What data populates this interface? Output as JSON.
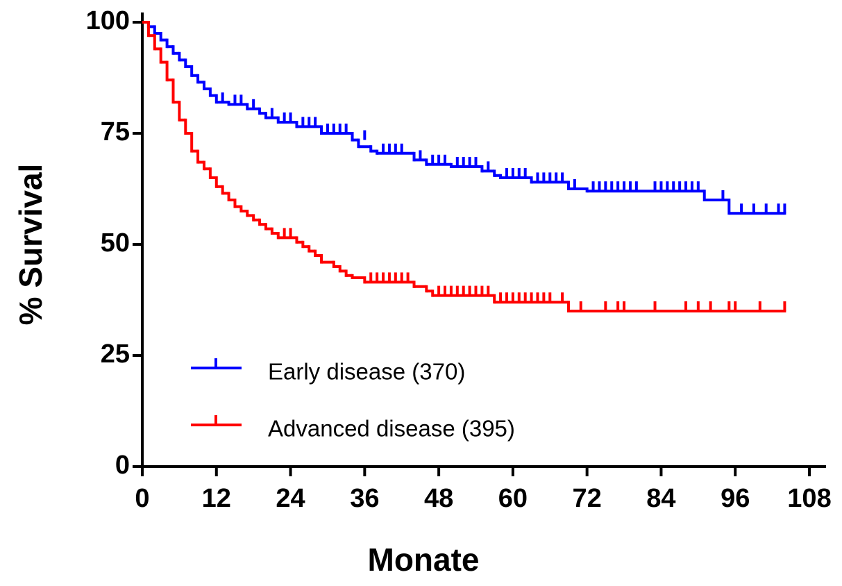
{
  "chart_data": {
    "type": "step",
    "xlabel": "Monate",
    "ylabel": "% Survival",
    "xlim": [
      0,
      108
    ],
    "ylim": [
      0,
      100
    ],
    "xticks": [
      0,
      12,
      24,
      36,
      48,
      60,
      72,
      84,
      96,
      108
    ],
    "yticks": [
      0,
      25,
      50,
      75,
      100
    ],
    "legend": "lower-left",
    "series": [
      {
        "name": "Early disease (370)",
        "color": "#0000ff",
        "x": [
          0,
          1,
          2,
          3,
          4,
          5,
          6,
          7,
          8,
          9,
          10,
          11,
          12,
          14,
          17,
          19,
          20,
          22,
          25,
          29,
          34,
          35,
          37,
          38,
          44,
          46,
          50,
          55,
          57,
          58,
          63,
          69,
          72,
          91,
          95,
          104
        ],
        "values": [
          100,
          99,
          97.5,
          96,
          94.5,
          93,
          91.5,
          90,
          88,
          86.5,
          85,
          83.5,
          82,
          81.5,
          80.5,
          79.5,
          78.5,
          77.5,
          76.5,
          75,
          73.5,
          72,
          71,
          70.5,
          69,
          68,
          67.5,
          66.5,
          65.5,
          65,
          64,
          62.5,
          62,
          60,
          57,
          57
        ],
        "censored_x": [
          13,
          15,
          16,
          18,
          21,
          23,
          24,
          26,
          27,
          28,
          30,
          31,
          32,
          33,
          36,
          39,
          40,
          41,
          42,
          45,
          47,
          48,
          49,
          51,
          52,
          53,
          54,
          56,
          59,
          60,
          61,
          62,
          64,
          65,
          66,
          67,
          68,
          70,
          73,
          74,
          75,
          76,
          77,
          78,
          79,
          80,
          83,
          84,
          85,
          86,
          87,
          88,
          89,
          90,
          94,
          97,
          99,
          101,
          103,
          104
        ],
        "censored_values": [
          82,
          81.5,
          81.5,
          80.5,
          78.5,
          77.5,
          77.5,
          76.5,
          76.5,
          76.5,
          75,
          75,
          75,
          75,
          73.5,
          70.5,
          70.5,
          70.5,
          70.5,
          69,
          68,
          68,
          68,
          67.5,
          67.5,
          67.5,
          67.5,
          66.5,
          65,
          65,
          65,
          65,
          64,
          64,
          64,
          64,
          64,
          62.5,
          62,
          62,
          62,
          62,
          62,
          62,
          62,
          62,
          62,
          62,
          62,
          62,
          62,
          62,
          62,
          62,
          60,
          57,
          57,
          57,
          57,
          57
        ]
      },
      {
        "name": "Advanced disease (395)",
        "color": "#ff0000",
        "x": [
          0,
          1,
          2,
          3,
          4,
          5,
          6,
          7,
          8,
          9,
          10,
          11,
          12,
          13,
          14,
          15,
          16,
          17,
          18,
          19,
          20,
          21,
          22,
          25,
          26,
          27,
          28,
          29,
          31,
          32,
          33,
          34,
          36,
          44,
          46,
          47,
          57,
          69,
          104
        ],
        "values": [
          100,
          97,
          94,
          91,
          87,
          82,
          78,
          75,
          71,
          68.5,
          67,
          65,
          63,
          61.5,
          60,
          58.5,
          57.5,
          56.5,
          55.5,
          54.5,
          53.5,
          52.5,
          51.5,
          50.5,
          49.5,
          48.5,
          47.5,
          46,
          45,
          44,
          43,
          42.5,
          41.5,
          40.5,
          39.5,
          38.5,
          37,
          35,
          35
        ],
        "censored_x": [
          23,
          24,
          37,
          38,
          39,
          40,
          41,
          42,
          43,
          48,
          49,
          50,
          51,
          52,
          53,
          54,
          55,
          56,
          58,
          59,
          60,
          61,
          62,
          63,
          64,
          65,
          66,
          68,
          71,
          75,
          77,
          78,
          83,
          88,
          90,
          92,
          95,
          96,
          100,
          104
        ],
        "censored_values": [
          51.5,
          51.5,
          41.5,
          41.5,
          41.5,
          41.5,
          41.5,
          41.5,
          41.5,
          38.5,
          38.5,
          38.5,
          38.5,
          38.5,
          38.5,
          38.5,
          38.5,
          38.5,
          37,
          37,
          37,
          37,
          37,
          37,
          37,
          37,
          37,
          37,
          35,
          35,
          35,
          35,
          35,
          35,
          35,
          35,
          35,
          35,
          35,
          35
        ]
      }
    ]
  }
}
